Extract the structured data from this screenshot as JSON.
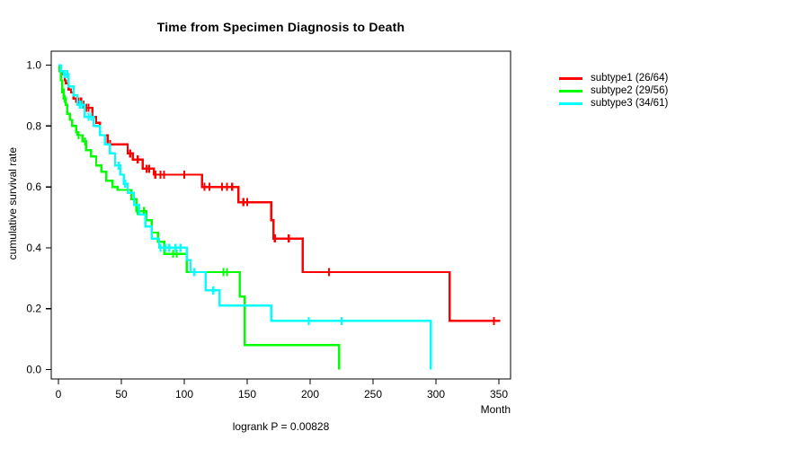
{
  "chart_data": {
    "type": "line",
    "subtype": "kaplan-meier-step-curves",
    "title": "Time from Specimen Diagnosis to Death",
    "xlabel": "Month",
    "ylabel": "cumulative survival rate",
    "annotation": "logrank P = 0.00828",
    "xlim": [
      0,
      360
    ],
    "ylim": [
      0.0,
      1.0
    ],
    "xticks": [
      0,
      50,
      100,
      150,
      200,
      250,
      300,
      350
    ],
    "yticks": [
      0.0,
      0.2,
      0.4,
      0.6,
      0.8,
      1.0
    ],
    "grid": false,
    "legend_position": "right-outside",
    "axis_color": "#000000",
    "series": [
      {
        "name": "subtype1 (26/64)",
        "color": "#ff0000",
        "steps": [
          [
            0,
            1.0
          ],
          [
            2,
            0.98
          ],
          [
            3,
            0.97
          ],
          [
            5,
            0.95
          ],
          [
            6,
            0.94
          ],
          [
            8,
            0.92
          ],
          [
            10,
            0.91
          ],
          [
            12,
            0.89
          ],
          [
            14,
            0.88
          ],
          [
            20,
            0.86
          ],
          [
            27,
            0.83
          ],
          [
            30,
            0.81
          ],
          [
            33,
            0.77
          ],
          [
            39,
            0.74
          ],
          [
            55,
            0.71
          ],
          [
            59,
            0.69
          ],
          [
            67,
            0.66
          ],
          [
            76,
            0.64
          ],
          [
            114,
            0.6
          ],
          [
            143,
            0.55
          ],
          [
            169,
            0.49
          ],
          [
            171,
            0.43
          ],
          [
            194,
            0.32
          ],
          [
            311,
            0.16
          ]
        ],
        "end_month": 351,
        "censors": [
          16,
          18,
          22,
          24,
          41,
          57,
          63,
          70,
          72,
          77,
          81,
          84,
          100,
          116,
          120,
          130,
          134,
          138,
          147,
          150,
          172,
          183,
          215,
          346
        ]
      },
      {
        "name": "subtype2 (29/56)",
        "color": "#00ff00",
        "steps": [
          [
            0,
            1.0
          ],
          [
            1,
            0.98
          ],
          [
            2,
            0.95
          ],
          [
            3,
            0.92
          ],
          [
            4,
            0.89
          ],
          [
            6,
            0.87
          ],
          [
            7,
            0.84
          ],
          [
            9,
            0.82
          ],
          [
            11,
            0.8
          ],
          [
            14,
            0.78
          ],
          [
            15,
            0.77
          ],
          [
            19,
            0.75
          ],
          [
            22,
            0.72
          ],
          [
            26,
            0.7
          ],
          [
            30,
            0.67
          ],
          [
            34,
            0.65
          ],
          [
            38,
            0.62
          ],
          [
            43,
            0.6
          ],
          [
            47,
            0.59
          ],
          [
            58,
            0.56
          ],
          [
            62,
            0.52
          ],
          [
            70,
            0.49
          ],
          [
            74,
            0.45
          ],
          [
            79,
            0.42
          ],
          [
            84,
            0.38
          ],
          [
            102,
            0.32
          ],
          [
            144,
            0.24
          ],
          [
            148,
            0.08
          ],
          [
            223,
            0.0
          ]
        ],
        "end_month": 223,
        "censors": [
          3,
          5,
          16,
          21,
          63,
          68,
          91,
          94,
          131,
          134
        ]
      },
      {
        "name": "subtype3 (34/61)",
        "color": "#00ffff",
        "steps": [
          [
            0,
            1.0
          ],
          [
            2,
            0.98
          ],
          [
            4,
            0.97
          ],
          [
            8,
            0.93
          ],
          [
            12,
            0.9
          ],
          [
            15,
            0.87
          ],
          [
            21,
            0.83
          ],
          [
            28,
            0.8
          ],
          [
            33,
            0.77
          ],
          [
            37,
            0.74
          ],
          [
            41,
            0.71
          ],
          [
            45,
            0.67
          ],
          [
            49,
            0.64
          ],
          [
            52,
            0.61
          ],
          [
            55,
            0.58
          ],
          [
            60,
            0.54
          ],
          [
            64,
            0.51
          ],
          [
            69,
            0.47
          ],
          [
            74,
            0.43
          ],
          [
            80,
            0.4
          ],
          [
            102,
            0.36
          ],
          [
            105,
            0.32
          ],
          [
            117,
            0.26
          ],
          [
            128,
            0.21
          ],
          [
            169,
            0.16
          ],
          [
            296,
            0.0
          ]
        ],
        "end_month": 296,
        "censors": [
          5,
          7,
          17,
          19,
          24,
          26,
          48,
          53,
          81,
          85,
          88,
          93,
          97,
          108,
          123,
          199,
          225
        ]
      }
    ]
  }
}
